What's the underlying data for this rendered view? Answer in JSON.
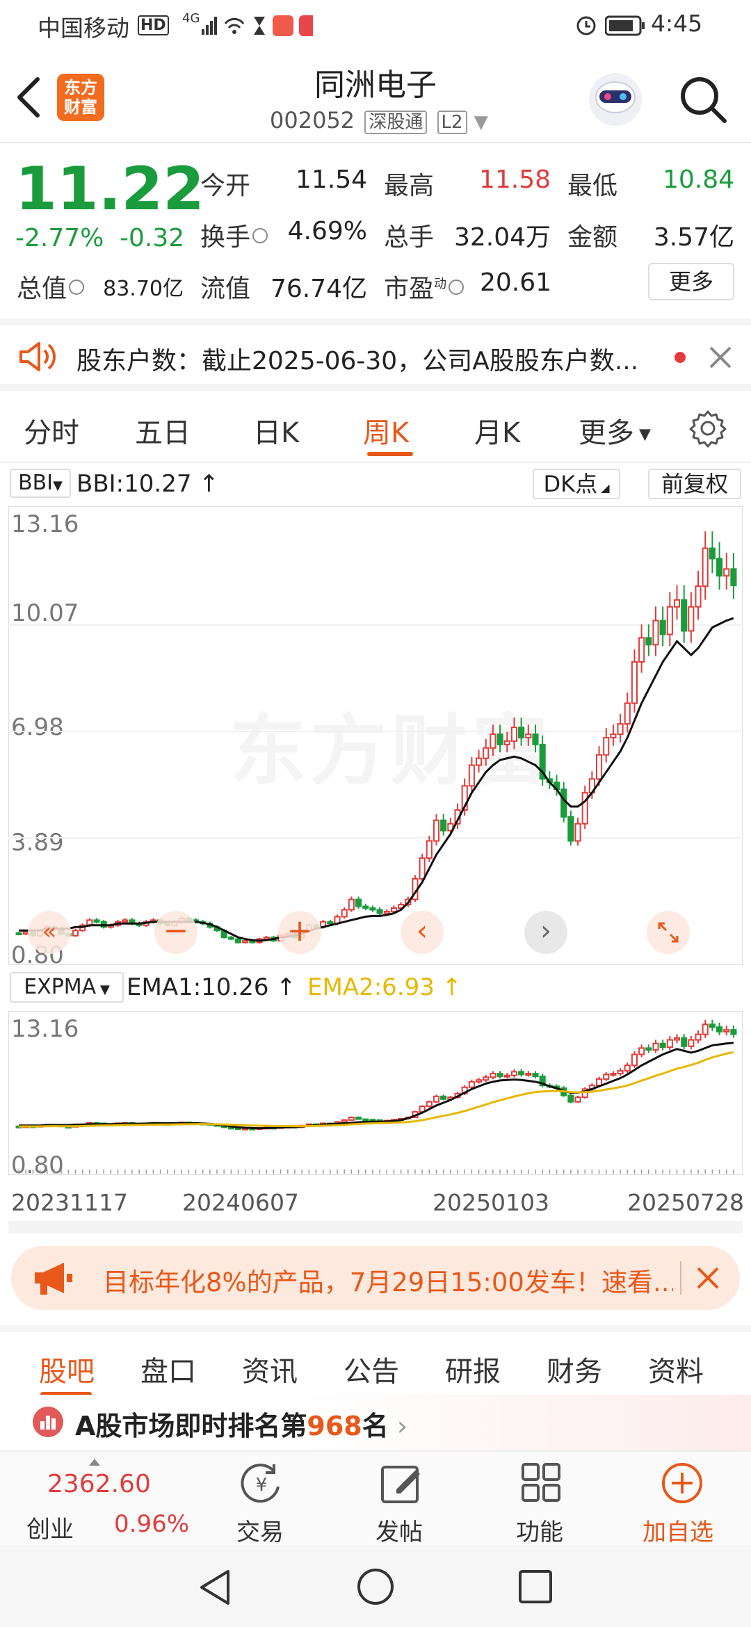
{
  "status_bar": {
    "carrier": "中国移动",
    "hd": "HD",
    "net": "4G",
    "time": "4:45"
  },
  "header": {
    "logo_text": "东方财富",
    "title": "同洲电子",
    "code": "002052",
    "tag1": "深股通",
    "tag2": "L2"
  },
  "quote": {
    "price": "11.22",
    "change_pct": "-2.77%",
    "change_abs": "-0.32",
    "open_label": "今开",
    "open": "11.54",
    "high_label": "最高",
    "high": "11.58",
    "low_label": "最低",
    "low": "10.84",
    "turnover_label": "换手",
    "turnover": "4.69%",
    "volume_label": "总手",
    "volume": "32.04万",
    "amount_label": "金额",
    "amount": "3.57亿",
    "mktcap_label": "总值",
    "mktcap": "83.70亿",
    "float_label": "流值",
    "float": "76.74亿",
    "pe_label": "市盈",
    "pe_sup": "动",
    "pe": "20.61",
    "more": "更多"
  },
  "notice": {
    "text": "股东户数：截止2025-06-30，公司A股股东户数..."
  },
  "tabs": [
    "分时",
    "五日",
    "日K",
    "周K",
    "月K",
    "更多"
  ],
  "active_tab": "周K",
  "main_chart": {
    "indicator": "BBI",
    "value": "BBI:10.27",
    "dk": "DK点",
    "adjust": "前复权",
    "watermark": "东方财富"
  },
  "sub_chart": {
    "indicator": "EXPMA",
    "ema1": "EMA1:10.26",
    "ema2": "EMA2:6.93"
  },
  "chart_data": [
    {
      "type": "candlestick",
      "title": "",
      "y_ticks": [
        "13.16",
        "10.07",
        "6.98",
        "3.89",
        "0.80"
      ],
      "ylim": [
        0.8,
        13.16
      ],
      "x_ticks": [
        "20231117",
        "20240607",
        "20250103",
        "20250728"
      ],
      "series": [
        {
          "name": "BBI",
          "last": 10.27
        }
      ],
      "closes": [
        1.1,
        1.15,
        1.05,
        1.2,
        1.3,
        1.25,
        1.1,
        1.05,
        1.2,
        1.35,
        1.5,
        1.45,
        1.3,
        1.35,
        1.45,
        1.5,
        1.4,
        1.35,
        1.45,
        1.5,
        1.4,
        1.35,
        1.45,
        1.55,
        1.5,
        1.45,
        1.4,
        1.3,
        1.2,
        1.0,
        0.95,
        0.85,
        0.9,
        0.85,
        0.95,
        1.0,
        0.9,
        1.05,
        1.1,
        1.0,
        1.2,
        1.35,
        1.3,
        1.45,
        1.4,
        1.6,
        1.8,
        2.1,
        1.9,
        1.85,
        1.8,
        1.7,
        1.75,
        1.85,
        1.95,
        2.1,
        2.7,
        3.3,
        3.8,
        4.4,
        4.1,
        4.3,
        4.7,
        5.4,
        6.0,
        6.2,
        6.5,
        6.9,
        6.6,
        6.7,
        7.1,
        6.8,
        6.9,
        6.6,
        5.6,
        5.5,
        5.3,
        4.5,
        3.8,
        4.3,
        5.2,
        5.6,
        6.3,
        6.8,
        6.9,
        7.2,
        7.8,
        9.0,
        9.7,
        9.5,
        10.2,
        9.8,
        10.6,
        10.8,
        9.9,
        10.6,
        11.2,
        12.3,
        12.0,
        11.5,
        11.7,
        11.22
      ],
      "bbi": [
        1.2,
        1.2,
        1.2,
        1.2,
        1.25,
        1.25,
        1.25,
        1.25,
        1.3,
        1.3,
        1.35,
        1.35,
        1.35,
        1.35,
        1.4,
        1.4,
        1.4,
        1.4,
        1.42,
        1.45,
        1.45,
        1.45,
        1.45,
        1.45,
        1.45,
        1.45,
        1.42,
        1.38,
        1.3,
        1.2,
        1.1,
        1.0,
        0.95,
        0.92,
        0.9,
        0.92,
        0.95,
        1.0,
        1.02,
        1.05,
        1.1,
        1.18,
        1.25,
        1.3,
        1.35,
        1.4,
        1.45,
        1.5,
        1.55,
        1.6,
        1.62,
        1.62,
        1.65,
        1.7,
        1.8,
        2.0,
        2.3,
        2.6,
        3.0,
        3.4,
        3.7,
        4.0,
        4.4,
        4.8,
        5.2,
        5.5,
        5.8,
        6.0,
        6.15,
        6.2,
        6.25,
        6.2,
        6.1,
        6.0,
        5.8,
        5.5,
        5.3,
        5.0,
        4.8,
        4.8,
        4.95,
        5.2,
        5.5,
        5.8,
        6.1,
        6.4,
        6.8,
        7.3,
        7.8,
        8.2,
        8.6,
        9.0,
        9.3,
        9.6,
        9.4,
        9.2,
        9.4,
        9.7,
        10.0,
        10.1,
        10.2,
        10.27
      ]
    },
    {
      "type": "candlestick",
      "title": "",
      "y_ticks": [
        "13.16",
        "0.80"
      ],
      "ylim": [
        0.8,
        13.16
      ],
      "series": [
        {
          "name": "EMA1",
          "last": 10.26
        },
        {
          "name": "EMA2",
          "last": 6.93
        }
      ]
    }
  ],
  "ad": {
    "text": "目标年化8%的产品，7月29日15:00发车！速看..."
  },
  "bottom_tabs": [
    "股吧",
    "盘口",
    "资讯",
    "公告",
    "研报",
    "财务",
    "资料"
  ],
  "rank": {
    "prefix": "A股市场即时排名第",
    "num": "968",
    "suffix": "名"
  },
  "bottom_bar": {
    "index_value": "2362.60",
    "index_name": "创业",
    "index_pct": "0.96%",
    "trade": "交易",
    "post": "发帖",
    "func": "功能",
    "add": "加自选"
  },
  "colors": {
    "accent": "#e8581a",
    "up": "#e23b3b",
    "down": "#1a9c3c",
    "ema2": "#e6b800"
  }
}
